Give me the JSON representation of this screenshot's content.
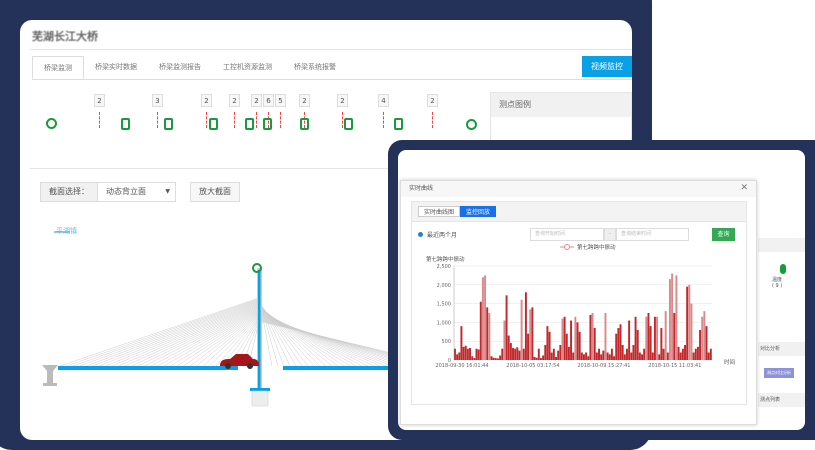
{
  "back": {
    "title": "芜湖长江大桥",
    "tabs": [
      "桥梁监测",
      "桥梁实时数据",
      "桥梁监测报告",
      "工控机资源监测",
      "桥梁系统报警"
    ],
    "video_button": "视频监控",
    "sensor_counts": [
      "2",
      "3",
      "2",
      "2",
      "2",
      "6",
      "5",
      "2",
      "2",
      "4",
      "2"
    ],
    "legend_title": "测点图例",
    "section_label": "截面选择：",
    "section_value": "动态背立面",
    "zoom_button": "放大截面",
    "direction_label": "平湖镇"
  },
  "modal": {
    "title": "实时曲线",
    "tabs": [
      "实时曲线图",
      "监控回放"
    ],
    "active_tab": 1,
    "radio_label": "最近两个月",
    "start_placeholder": "查询开始时间",
    "end_placeholder": "查询结束时间",
    "range_sep": "-",
    "query_button": "查询",
    "close_icon": "close-icon"
  },
  "side": {
    "temp_label": "温度",
    "temp_count": "( 9 )",
    "compare_header": "对比分析",
    "compare_button": "测点对比分析",
    "list_header": "测点列表"
  },
  "colors": {
    "accent": "#0aa0e6",
    "series": "#c0282b",
    "frame": "#243159",
    "query": "#34a853"
  },
  "chart_data": {
    "type": "bar",
    "legend": "第七跨跨中振动",
    "ylabel": "第七跨跨中振动",
    "xlabel": "时间",
    "ylim": [
      0,
      2500
    ],
    "yticks": [
      "0",
      "500",
      "1,000",
      "1,500",
      "2,000",
      "2,500"
    ],
    "xticks": [
      "2018-09-30 16:01:44",
      "2018-10-05 03:17:54",
      "2018-10-09 15:27:41",
      "2018-10-15 11:03:41"
    ],
    "grid": true,
    "values": [
      300,
      150,
      200,
      900,
      350,
      380,
      300,
      320,
      100,
      50,
      300,
      280,
      1550,
      2200,
      2250,
      1400,
      1250,
      100,
      60,
      50,
      40,
      120,
      300,
      1050,
      1720,
      650,
      450,
      320,
      300,
      340,
      250,
      1600,
      300,
      1800,
      700,
      1350,
      1400,
      80,
      60,
      300,
      50,
      120,
      400,
      900,
      750,
      200,
      300,
      80,
      250,
      400,
      1100,
      1150,
      700,
      350,
      1050,
      200,
      1150,
      1000,
      750,
      200,
      150,
      200,
      100,
      1200,
      1250,
      850,
      200,
      300,
      150,
      250,
      1250,
      200,
      150,
      300,
      100,
      700,
      850,
      950,
      400,
      150,
      300,
      1050,
      200,
      400,
      1150,
      800,
      200,
      150,
      300,
      1150,
      1250,
      900,
      200,
      1150,
      1150,
      150,
      850,
      300,
      1300,
      200,
      2150,
      2300,
      1250,
      2250,
      350,
      200,
      300,
      400,
      1950,
      2000,
      1500,
      200,
      300,
      350,
      800,
      1150,
      1300,
      900,
      200,
      300
    ]
  }
}
